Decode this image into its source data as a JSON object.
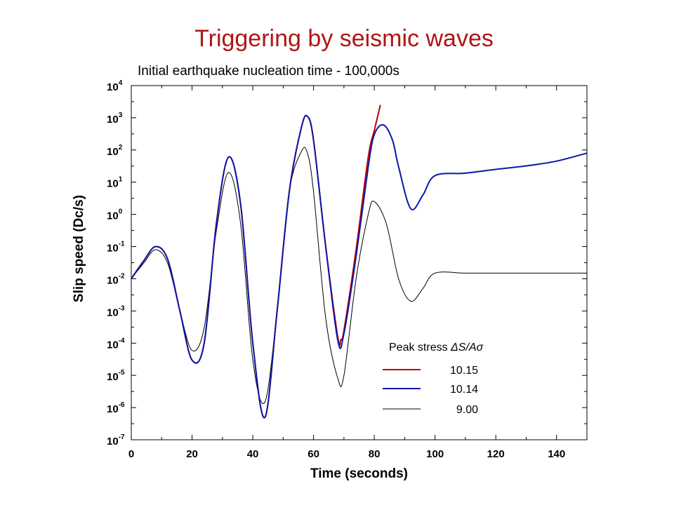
{
  "slide": {
    "title": "Triggering by seismic waves",
    "subtitle": "Initial earthquake nucleation time - 100,000s"
  },
  "chart_data": {
    "type": "line",
    "xlabel": "Time (seconds)",
    "ylabel": "Slip speed (Dc/s)",
    "xlim": [
      0,
      150
    ],
    "ylim": [
      1e-07,
      10000
    ],
    "yscale": "log",
    "x_ticks": [
      0,
      20,
      40,
      60,
      80,
      100,
      120,
      140
    ],
    "y_tick_exponents": [
      -7,
      -6,
      -5,
      -4,
      -3,
      -2,
      -1,
      0,
      1,
      2,
      3,
      4
    ],
    "grid": false,
    "legend": {
      "title_prefix": "Peak stress ",
      "title_symbol": "ΔS/Aσ",
      "placement": "bottom-right"
    },
    "series": [
      {
        "name": "10.15",
        "color": "#c00000",
        "x": [
          0,
          4,
          8,
          12,
          16,
          20,
          24,
          28,
          32,
          36,
          40,
          44,
          48,
          52,
          56,
          58,
          60,
          64,
          68,
          69,
          70,
          74,
          78,
          80,
          82
        ],
        "y": [
          0.01,
          0.035,
          0.1,
          0.04,
          0.001,
          3e-05,
          0.0001,
          0.5,
          60,
          2,
          0.0001,
          5e-07,
          0.001,
          5,
          500,
          1100,
          200,
          0.1,
          0.00015,
          0.00013,
          0.00025,
          0.08,
          60,
          400,
          2500
        ]
      },
      {
        "name": "10.14",
        "color": "#0a18a8",
        "x": [
          0,
          4,
          8,
          12,
          16,
          20,
          24,
          28,
          32,
          36,
          40,
          44,
          48,
          52,
          56,
          58,
          60,
          64,
          68,
          70,
          74,
          78,
          80,
          83,
          86,
          88,
          92,
          96,
          100,
          110,
          120,
          130,
          140,
          150
        ],
        "y": [
          0.01,
          0.035,
          0.1,
          0.04,
          0.001,
          3e-05,
          0.0001,
          0.5,
          60,
          2,
          0.0001,
          5e-07,
          0.001,
          5,
          500,
          1100,
          200,
          0.1,
          0.00012,
          0.0002,
          0.05,
          30,
          300,
          600,
          200,
          30,
          1.5,
          4,
          16,
          19,
          25,
          32,
          45,
          80
        ]
      },
      {
        "name": "9.00",
        "color": "#000000",
        "x": [
          0,
          4,
          8,
          12,
          16,
          20,
          24,
          28,
          32,
          36,
          40,
          44,
          48,
          52,
          56,
          58,
          60,
          64,
          68,
          70,
          74,
          78,
          80,
          84,
          88,
          92,
          96,
          100,
          110,
          120,
          130,
          140,
          150
        ],
        "y": [
          0.01,
          0.03,
          0.08,
          0.03,
          0.001,
          6e-05,
          0.0003,
          0.3,
          20,
          0.5,
          3e-05,
          1.5e-06,
          0.001,
          5,
          90,
          80,
          5,
          0.0006,
          8e-06,
          1e-05,
          0.01,
          1,
          2.5,
          0.5,
          0.01,
          0.002,
          0.005,
          0.015,
          0.015,
          0.015,
          0.015,
          0.015,
          0.015
        ]
      }
    ]
  }
}
